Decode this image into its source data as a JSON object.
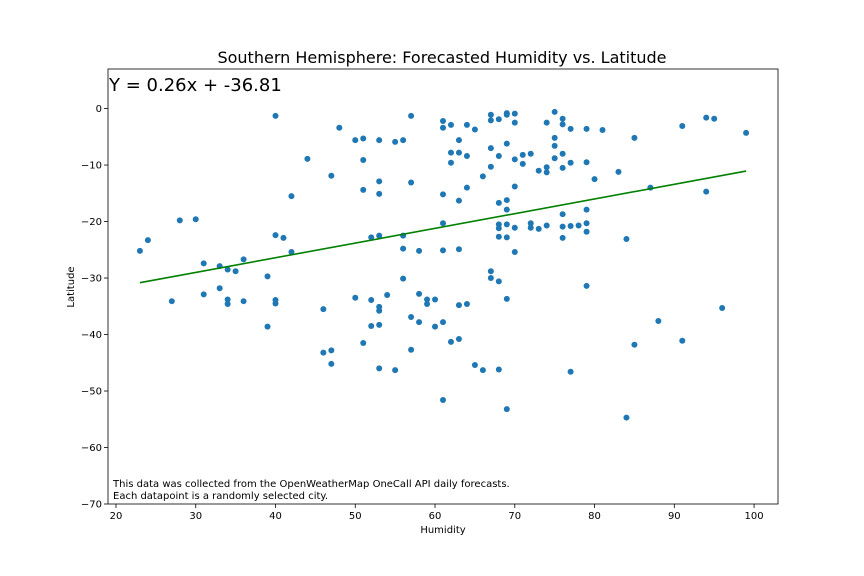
{
  "chart_data": {
    "type": "scatter",
    "title": "Southern Hemisphere: Forecasted Humidity vs. Latitude",
    "xlabel": "Humidity",
    "ylabel": "Latitude",
    "xlim": [
      19,
      103
    ],
    "ylim": [
      -70,
      7
    ],
    "xticks": [
      20,
      30,
      40,
      50,
      60,
      70,
      80,
      90,
      100
    ],
    "yticks": [
      0,
      -10,
      -20,
      -30,
      -40,
      -50,
      -60,
      -70
    ],
    "xtick_labels": [
      "20",
      "30",
      "40",
      "50",
      "60",
      "70",
      "80",
      "90",
      "100"
    ],
    "ytick_labels": [
      "0",
      "−10",
      "−20",
      "−30",
      "−40",
      "−50",
      "−60",
      "−70"
    ],
    "grid": false,
    "equation": "Y = 0.26x + -36.81",
    "regression": {
      "slope": 0.26,
      "intercept": -36.81,
      "x_range": [
        23,
        99
      ]
    },
    "annotation_lines": [
      "This data was collected from the OpenWeatherMap OneCall API daily forecasts.",
      "Each datapoint is a randomly selected city."
    ],
    "colors": {
      "points": "#1f77b4",
      "regression": "#008000"
    },
    "points": [
      [
        23,
        -25.2
      ],
      [
        24,
        -23.3
      ],
      [
        27,
        -34.1
      ],
      [
        28,
        -19.8
      ],
      [
        30,
        -19.6
      ],
      [
        31,
        -27.4
      ],
      [
        31,
        -32.9
      ],
      [
        33,
        -27.9
      ],
      [
        33,
        -31.8
      ],
      [
        34,
        -28.5
      ],
      [
        34,
        -33.8
      ],
      [
        34,
        -34.6
      ],
      [
        35,
        -28.8
      ],
      [
        36,
        -26.7
      ],
      [
        36,
        -34.1
      ],
      [
        39,
        -29.7
      ],
      [
        39,
        -38.6
      ],
      [
        40,
        -1.3
      ],
      [
        40,
        -22.4
      ],
      [
        40,
        -33.9
      ],
      [
        40,
        -34.5
      ],
      [
        41,
        -22.9
      ],
      [
        42,
        -15.5
      ],
      [
        42,
        -25.4
      ],
      [
        44,
        -8.9
      ],
      [
        46,
        -35.5
      ],
      [
        46,
        -43.2
      ],
      [
        47,
        -11.9
      ],
      [
        47,
        -42.8
      ],
      [
        47,
        -45.2
      ],
      [
        48,
        -3.4
      ],
      [
        50,
        -5.6
      ],
      [
        50,
        -33.5
      ],
      [
        51,
        -5.3
      ],
      [
        51,
        -9.1
      ],
      [
        51,
        -14.4
      ],
      [
        51,
        -41.5
      ],
      [
        52,
        -22.8
      ],
      [
        52,
        -33.9
      ],
      [
        52,
        -38.5
      ],
      [
        53,
        -5.6
      ],
      [
        53,
        -12.9
      ],
      [
        53,
        -15.1
      ],
      [
        53,
        -22.5
      ],
      [
        53,
        -35.1
      ],
      [
        53,
        -35.8
      ],
      [
        53,
        -38.3
      ],
      [
        53,
        -46.0
      ],
      [
        54,
        -33.0
      ],
      [
        55,
        -5.9
      ],
      [
        55,
        -46.3
      ],
      [
        56,
        -5.6
      ],
      [
        56,
        -22.5
      ],
      [
        56,
        -24.8
      ],
      [
        56,
        -30.1
      ],
      [
        57,
        -1.3
      ],
      [
        57,
        -13.1
      ],
      [
        57,
        -36.9
      ],
      [
        57,
        -42.7
      ],
      [
        58,
        -25.2
      ],
      [
        58,
        -32.8
      ],
      [
        58,
        -37.8
      ],
      [
        59,
        -33.8
      ],
      [
        59,
        -34.6
      ],
      [
        60,
        -33.8
      ],
      [
        60,
        -38.6
      ],
      [
        61,
        -2.2
      ],
      [
        61,
        -3.4
      ],
      [
        61,
        -15.2
      ],
      [
        61,
        -20.3
      ],
      [
        61,
        -25.1
      ],
      [
        61,
        -37.8
      ],
      [
        61,
        -51.6
      ],
      [
        62,
        -2.9
      ],
      [
        62,
        -7.8
      ],
      [
        62,
        -9.6
      ],
      [
        62,
        -41.3
      ],
      [
        63,
        -5.6
      ],
      [
        63,
        -7.8
      ],
      [
        63,
        -16.3
      ],
      [
        63,
        -24.9
      ],
      [
        63,
        -34.8
      ],
      [
        63,
        -40.8
      ],
      [
        64,
        -2.9
      ],
      [
        64,
        -8.4
      ],
      [
        64,
        -14.0
      ],
      [
        64,
        -34.6
      ],
      [
        65,
        -3.7
      ],
      [
        65,
        -45.4
      ],
      [
        66,
        -12.0
      ],
      [
        66,
        -46.3
      ],
      [
        67,
        -1.1
      ],
      [
        67,
        -2.1
      ],
      [
        67,
        -7.0
      ],
      [
        67,
        -10.3
      ],
      [
        67,
        -28.8
      ],
      [
        67,
        -30.0
      ],
      [
        68,
        -1.9
      ],
      [
        68,
        -8.4
      ],
      [
        68,
        -16.7
      ],
      [
        68,
        -20.5
      ],
      [
        68,
        -21.2
      ],
      [
        68,
        -22.7
      ],
      [
        68,
        -30.6
      ],
      [
        68,
        -46.2
      ],
      [
        69,
        -0.8
      ],
      [
        69,
        -1.1
      ],
      [
        69,
        -6.2
      ],
      [
        69,
        -16.2
      ],
      [
        69,
        -17.9
      ],
      [
        69,
        -20.5
      ],
      [
        69,
        -22.8
      ],
      [
        69,
        -33.7
      ],
      [
        69,
        -53.2
      ],
      [
        70,
        -0.9
      ],
      [
        70,
        -2.5
      ],
      [
        70,
        -9.0
      ],
      [
        70,
        -13.8
      ],
      [
        70,
        -21.1
      ],
      [
        70,
        -25.4
      ],
      [
        71,
        -8.2
      ],
      [
        71,
        -9.8
      ],
      [
        72,
        -8.0
      ],
      [
        72,
        -20.3
      ],
      [
        72,
        -21.1
      ],
      [
        73,
        -11.0
      ],
      [
        73,
        -21.3
      ],
      [
        74,
        -2.5
      ],
      [
        74,
        -10.4
      ],
      [
        74,
        -11.3
      ],
      [
        74,
        -20.7
      ],
      [
        75,
        -0.6
      ],
      [
        75,
        -5.2
      ],
      [
        75,
        -6.6
      ],
      [
        75,
        -8.8
      ],
      [
        76,
        -1.8
      ],
      [
        76,
        -2.8
      ],
      [
        76,
        -8.0
      ],
      [
        76,
        -10.5
      ],
      [
        76,
        -18.7
      ],
      [
        76,
        -20.9
      ],
      [
        76,
        -22.9
      ],
      [
        77,
        -3.6
      ],
      [
        77,
        -9.6
      ],
      [
        77,
        -20.8
      ],
      [
        77,
        -46.6
      ],
      [
        78,
        -20.7
      ],
      [
        79,
        -3.6
      ],
      [
        79,
        -9.5
      ],
      [
        79,
        -17.9
      ],
      [
        79,
        -20.3
      ],
      [
        79,
        -21.8
      ],
      [
        79,
        -31.4
      ],
      [
        80,
        -12.5
      ],
      [
        81,
        -3.8
      ],
      [
        83,
        -11.2
      ],
      [
        84,
        -23.1
      ],
      [
        84,
        -54.7
      ],
      [
        85,
        -5.2
      ],
      [
        85,
        -41.8
      ],
      [
        87,
        -14.0
      ],
      [
        88,
        -37.6
      ],
      [
        91,
        -3.1
      ],
      [
        91,
        -41.1
      ],
      [
        94,
        -1.6
      ],
      [
        94,
        -14.7
      ],
      [
        95,
        -1.8
      ],
      [
        96,
        -35.3
      ],
      [
        99,
        -4.3
      ]
    ]
  }
}
